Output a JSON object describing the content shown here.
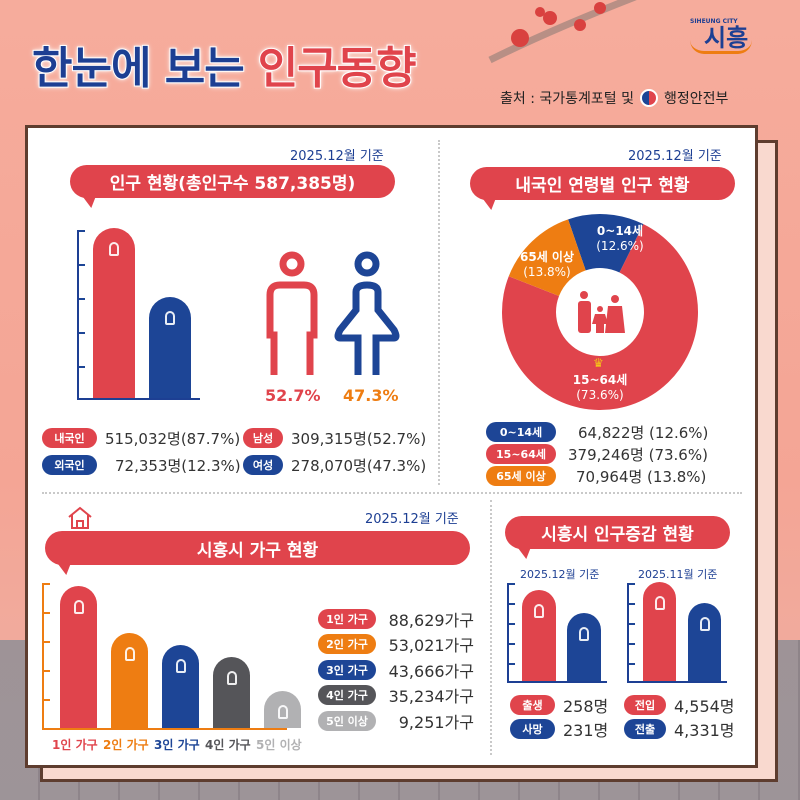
{
  "header": {
    "title_part1": "한눈에 보는",
    "title_part2": "인구동향",
    "source_prefix": "출처 : 국가통계포털 및",
    "source_agency": "행정안전부",
    "logo_en": "SIHEUNG CITY",
    "logo_ko": "시흥"
  },
  "colors": {
    "red": "#e0444c",
    "navy": "#1d4596",
    "orange": "#ee7d12",
    "dark_gray": "#555559",
    "light_gray": "#b1b1b3",
    "background": "#f4a595"
  },
  "population": {
    "date": "2025.12월 기준",
    "title": "인구 현황(총인구수 587,385명)",
    "male_pct": "52.7%",
    "female_pct": "47.3%",
    "legend": [
      {
        "label": "내국인",
        "value": "515,032명(87.7%)"
      },
      {
        "label": "외국인",
        "value": "72,353명(12.3%)"
      },
      {
        "label": "남성",
        "value": "309,315명(52.7%)"
      },
      {
        "label": "여성",
        "value": "278,070명(47.3%)"
      }
    ]
  },
  "age": {
    "date": "2025.12월 기준",
    "title": "내국인 연령별 인구 현황",
    "slices": [
      {
        "label": "0~14세",
        "pct_label": "(12.6%)",
        "value": "64,822명 (12.6%)"
      },
      {
        "label": "15~64세",
        "pct_label": "(73.6%)",
        "value": "379,246명 (73.6%)"
      },
      {
        "label": "65세 이상",
        "pct_label": "(13.8%)",
        "value": "70,964명 (13.8%)"
      }
    ]
  },
  "household": {
    "date": "2025.12월 기준",
    "title": "시흥시 가구 현황",
    "items": [
      {
        "label": "1인 가구",
        "value": "88,629가구"
      },
      {
        "label": "2인 가구",
        "value": "53,021가구"
      },
      {
        "label": "3인 가구",
        "value": "43,666가구"
      },
      {
        "label": "4인 가구",
        "value": "35,234가구"
      },
      {
        "label": "5인 이상",
        "value": "9,251가구"
      }
    ]
  },
  "change": {
    "title": "시흥시 인구증감 현황",
    "date_left": "2025.12월 기준",
    "date_right": "2025.11월 기준",
    "items": [
      {
        "label": "출생",
        "value": "258명"
      },
      {
        "label": "사망",
        "value": "231명"
      },
      {
        "label": "전입",
        "value": "4,554명"
      },
      {
        "label": "전출",
        "value": "4,331명"
      }
    ]
  },
  "chart_data": [
    {
      "type": "bar",
      "title": "인구 현황(총인구수 587,385명)",
      "categories": [
        "내국인",
        "외국인"
      ],
      "values": [
        515032,
        72353
      ]
    },
    {
      "type": "pie",
      "title": "내국인 연령별 인구 현황",
      "categories": [
        "0~14세",
        "15~64세",
        "65세 이상"
      ],
      "values": [
        64822,
        379246,
        70964
      ],
      "percent": [
        12.6,
        73.6,
        13.8
      ]
    },
    {
      "type": "bar",
      "title": "시흥시 가구 현황",
      "categories": [
        "1인 가구",
        "2인 가구",
        "3인 가구",
        "4인 가구",
        "5인 이상"
      ],
      "values": [
        88629,
        53021,
        43666,
        35234,
        9251
      ]
    },
    {
      "type": "bar",
      "title": "출생/사망",
      "categories": [
        "출생",
        "사망"
      ],
      "values": [
        258,
        231
      ]
    },
    {
      "type": "bar",
      "title": "전입/전출",
      "categories": [
        "전입",
        "전출"
      ],
      "values": [
        4554,
        4331
      ]
    }
  ]
}
